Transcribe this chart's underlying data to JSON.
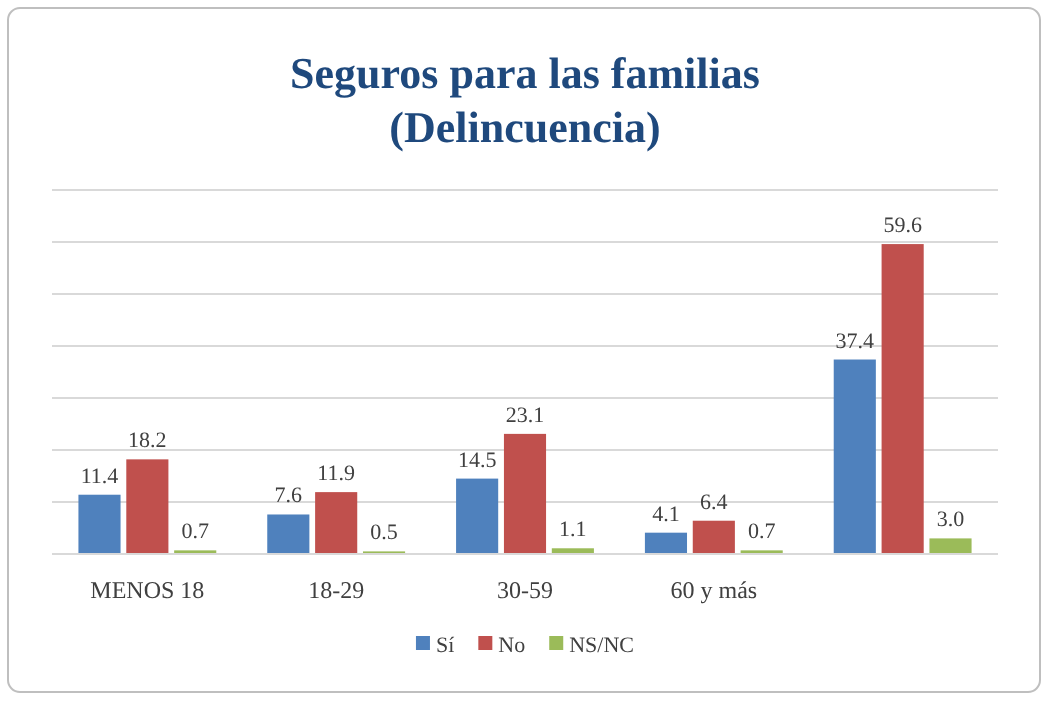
{
  "chart_data": {
    "type": "bar",
    "title": "Seguros para las familias\n(Delincuencia)",
    "categories": [
      "MENOS 18",
      "18-29",
      "30-59",
      "60 y más",
      null
    ],
    "series": [
      {
        "name": "Sí",
        "color": "#4f81bd",
        "values": [
          11.4,
          7.6,
          14.5,
          4.1,
          37.4
        ],
        "value_labels": [
          "11.4",
          "7.6",
          "14.5",
          "4.1",
          "37.4"
        ]
      },
      {
        "name": "No",
        "color": "#c0504d",
        "values": [
          18.2,
          11.9,
          23.1,
          6.4,
          59.6
        ],
        "value_labels": [
          "18.2",
          "11.9",
          "23.1",
          "6.4",
          "59.6"
        ]
      },
      {
        "name": "NS/NC",
        "color": "#9bbb59",
        "values": [
          0.7,
          0.5,
          1.1,
          0.7,
          3.0
        ],
        "value_labels": [
          "0.7",
          "0.5",
          "1.1",
          "0.7",
          "3.0"
        ]
      }
    ],
    "ylim": [
      0,
      70
    ],
    "yticks": [
      {
        "value": 0,
        "label": null
      },
      {
        "value": 10,
        "label": null
      },
      {
        "value": 20,
        "label": null
      },
      {
        "value": 30,
        "label": null
      },
      {
        "value": 40,
        "label": null
      },
      {
        "value": 50,
        "label": null
      },
      {
        "value": 60,
        "label": null
      },
      {
        "value": 70,
        "label": null
      }
    ],
    "tick_labels": "x",
    "grid": "y",
    "legend": "bottom"
  }
}
